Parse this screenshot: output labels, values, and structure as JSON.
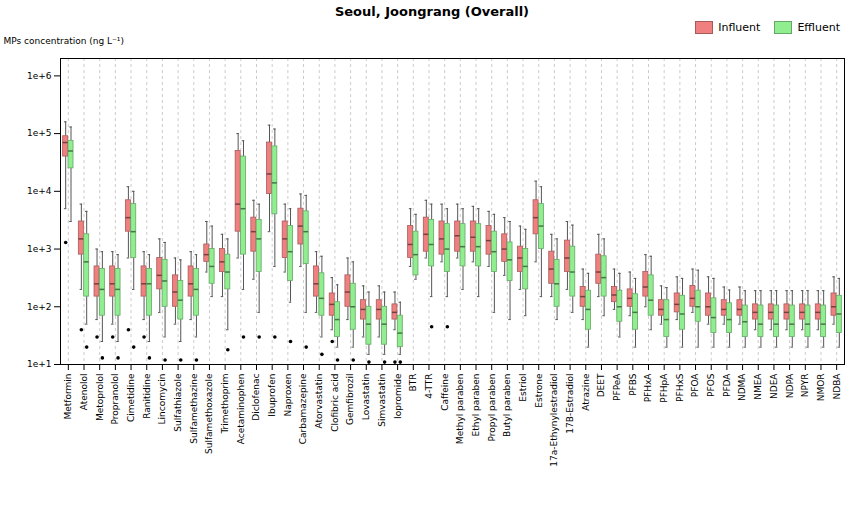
{
  "chart_data": {
    "type": "box",
    "title": "Seoul, Joongrang (Overall)",
    "ylabel": "MPs concentration (ng L⁻¹)",
    "categories": [
      "Metformin",
      "Atenolol",
      "Metoprolol",
      "Propranolol",
      "Cimetidine",
      "Ranitidine",
      "Lincomycin",
      "Sulfathiazole",
      "Sulfamethazine",
      "Sulfamethoxazole",
      "Trimethoprim",
      "Acetaminophen",
      "Diclofenac",
      "Ibuprofen",
      "Naproxen",
      "Carbamazepine",
      "Atorvastatin",
      "Clofibric acid",
      "Gemfibrozil",
      "Lovastatin",
      "Simvastatin",
      "Iopromide",
      "BTR",
      "4-TTR",
      "Caffeine",
      "Methyl paraben",
      "Ethyl paraben",
      "Propyl paraben",
      "Butyl paraben",
      "Estriol",
      "Estrone",
      "17a-Ethynylestradiol",
      "17B-Estradiol",
      "Atrazine",
      "DEET",
      "PFPeA",
      "PFBS",
      "PFHxA",
      "PFHpA",
      "PFHxS",
      "PFOA",
      "PFOS",
      "PFDA",
      "NDMA",
      "NMEA",
      "NDEA",
      "NDPA",
      "NPYR",
      "NMOR",
      "NDBA"
    ],
    "series": [
      {
        "name": "Influent",
        "color": "#F08080",
        "whislo": [
          5000,
          200,
          60,
          50,
          700,
          60,
          80,
          50,
          60,
          400,
          150,
          700,
          300,
          2000,
          400,
          500,
          80,
          40,
          60,
          30,
          30,
          40,
          500,
          700,
          600,
          700,
          600,
          500,
          350,
          200,
          600,
          150,
          200,
          60,
          150,
          90,
          70,
          100,
          50,
          60,
          80,
          50,
          50,
          50,
          40,
          40,
          40,
          40,
          40,
          50
        ],
        "q1": [
          40000,
          800,
          150,
          150,
          2000,
          150,
          200,
          100,
          150,
          600,
          400,
          2000,
          900,
          9000,
          700,
          1200,
          150,
          70,
          100,
          60,
          60,
          60,
          700,
          900,
          800,
          900,
          900,
          800,
          600,
          400,
          1800,
          250,
          400,
          100,
          250,
          120,
          100,
          150,
          70,
          80,
          100,
          70,
          70,
          70,
          60,
          60,
          60,
          60,
          60,
          70
        ],
        "med": [
          70000,
          1500,
          250,
          250,
          3500,
          250,
          350,
          180,
          250,
          800,
          600,
          6000,
          2000,
          20000,
          1500,
          2500,
          250,
          110,
          180,
          90,
          90,
          80,
          1200,
          1800,
          1500,
          1700,
          1600,
          1400,
          1000,
          700,
          3500,
          450,
          700,
          150,
          400,
          160,
          140,
          220,
          90,
          110,
          140,
          100,
          90,
          90,
          80,
          80,
          80,
          80,
          80,
          100
        ],
        "q3": [
          90000,
          3000,
          500,
          500,
          7000,
          500,
          700,
          350,
          500,
          1200,
          1000,
          50000,
          3500,
          70000,
          3000,
          5000,
          500,
          170,
          350,
          130,
          130,
          110,
          2500,
          3500,
          3000,
          3000,
          3000,
          2500,
          1800,
          1100,
          7000,
          900,
          1400,
          220,
          800,
          220,
          200,
          400,
          130,
          170,
          230,
          170,
          130,
          130,
          110,
          110,
          110,
          110,
          110,
          170
        ],
        "whishi": [
          160000,
          6000,
          1000,
          900,
          12000,
          900,
          1500,
          700,
          900,
          3000,
          1800,
          100000,
          7000,
          140000,
          6000,
          9000,
          900,
          320,
          700,
          230,
          230,
          180,
          5000,
          7000,
          6000,
          6000,
          5500,
          4500,
          3500,
          2500,
          15000,
          1800,
          3000,
          450,
          1800,
          450,
          400,
          800,
          230,
          330,
          450,
          330,
          220,
          220,
          190,
          190,
          190,
          190,
          190,
          330
        ],
        "fliers": [
          1300,
          40,
          30,
          30,
          40,
          30,
          null,
          null,
          null,
          null,
          null,
          null,
          null,
          null,
          null,
          null,
          null,
          25,
          null,
          null,
          null,
          11,
          null,
          null,
          null,
          null,
          null,
          null,
          null,
          null,
          null,
          null,
          null,
          null,
          null,
          null,
          null,
          null,
          null,
          null,
          null,
          null,
          null,
          null,
          null,
          null,
          null,
          null,
          null,
          null
        ]
      },
      {
        "name": "Effluent",
        "color": "#90EE90",
        "whislo": [
          3000,
          50,
          25,
          25,
          200,
          25,
          30,
          25,
          30,
          150,
          40,
          200,
          80,
          500,
          120,
          80,
          30,
          20,
          20,
          15,
          15,
          15,
          300,
          150,
          150,
          200,
          150,
          80,
          60,
          70,
          150,
          60,
          80,
          20,
          70,
          30,
          20,
          40,
          20,
          20,
          20,
          20,
          20,
          20,
          20,
          20,
          20,
          20,
          20,
          20
        ],
        "q1": [
          25000,
          150,
          70,
          70,
          700,
          70,
          100,
          60,
          70,
          250,
          200,
          800,
          400,
          4000,
          280,
          550,
          70,
          30,
          40,
          22,
          22,
          20,
          350,
          500,
          400,
          500,
          500,
          400,
          280,
          200,
          1000,
          100,
          150,
          40,
          150,
          55,
          40,
          70,
          30,
          40,
          55,
          35,
          35,
          30,
          30,
          30,
          30,
          30,
          30,
          35
        ],
        "med": [
          50000,
          600,
          200,
          200,
          2000,
          250,
          280,
          130,
          200,
          500,
          400,
          5000,
          1500,
          14000,
          900,
          2000,
          140,
          60,
          100,
          50,
          50,
          35,
          800,
          1200,
          1000,
          1100,
          1100,
          900,
          650,
          500,
          2500,
          250,
          400,
          90,
          320,
          100,
          80,
          130,
          60,
          75,
          100,
          65,
          60,
          55,
          50,
          50,
          50,
          50,
          50,
          75
        ],
        "q3": [
          75000,
          1800,
          450,
          450,
          6000,
          450,
          650,
          280,
          450,
          1000,
          800,
          40000,
          3200,
          60000,
          2500,
          4500,
          380,
          120,
          250,
          100,
          100,
          70,
          2000,
          3200,
          2700,
          2700,
          2700,
          2000,
          1300,
          1000,
          6000,
          650,
          1100,
          190,
          750,
          190,
          165,
          350,
          130,
          155,
          190,
          140,
          115,
          105,
          105,
          105,
          105,
          105,
          105,
          155
        ],
        "whishi": [
          130000,
          4500,
          900,
          800,
          10000,
          800,
          1300,
          650,
          800,
          2500,
          1500,
          75000,
          6000,
          120000,
          5000,
          8500,
          750,
          240,
          600,
          180,
          180,
          120,
          4000,
          6000,
          5000,
          5000,
          5000,
          4000,
          3000,
          2200,
          12000,
          1500,
          2600,
          380,
          1500,
          380,
          310,
          750,
          215,
          310,
          430,
          310,
          195,
          190,
          190,
          190,
          190,
          190,
          190,
          310
        ],
        "fliers": [
          null,
          20,
          13,
          13,
          20,
          13,
          12,
          12,
          12,
          null,
          18,
          30,
          30,
          30,
          25,
          20,
          15,
          12,
          12,
          11,
          11,
          11,
          null,
          45,
          45,
          null,
          null,
          null,
          null,
          null,
          null,
          null,
          null,
          null,
          null,
          null,
          null,
          null,
          null,
          null,
          null,
          null,
          null,
          null,
          null,
          null,
          null,
          null,
          null,
          null
        ]
      }
    ],
    "log": "y",
    "ylim": [
      10,
      2000000
    ],
    "yticks": [
      {
        "value": 10,
        "label": "1e+1"
      },
      {
        "value": 100,
        "label": "1e+2"
      },
      {
        "value": 1000,
        "label": "1e+3"
      },
      {
        "value": 10000,
        "label": "1e+4"
      },
      {
        "value": 100000,
        "label": "1e+5"
      },
      {
        "value": 1000000,
        "label": "1e+6"
      }
    ],
    "grid": "x",
    "legend": "upper right"
  }
}
